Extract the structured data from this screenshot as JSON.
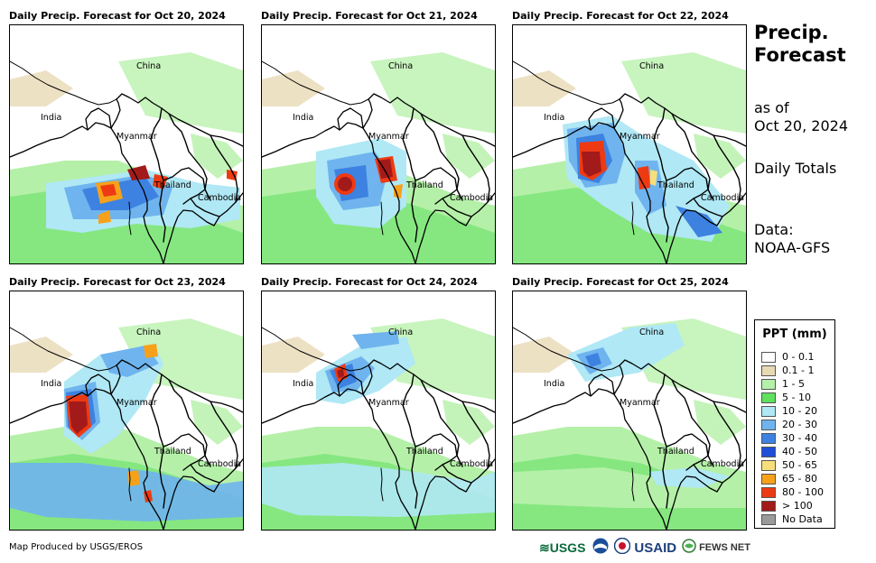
{
  "panels": [
    {
      "title": "Daily Precip. Forecast for Oct 20, 2024"
    },
    {
      "title": "Daily Precip. Forecast for Oct 21, 2024"
    },
    {
      "title": "Daily Precip. Forecast for Oct 22, 2024"
    },
    {
      "title": "Daily Precip. Forecast for Oct 23, 2024"
    },
    {
      "title": "Daily Precip. Forecast for Oct 24, 2024"
    },
    {
      "title": "Daily Precip. Forecast for Oct 25, 2024"
    }
  ],
  "map_labels": {
    "china": "China",
    "india": "India",
    "myanmar": "Myanmar",
    "thailand": "Thailand",
    "cambodia": "Cambodia"
  },
  "side": {
    "title_line1": "Precip.",
    "title_line2": "Forecast",
    "asof_line1": "as of",
    "asof_line2": "Oct 20, 2024",
    "totals": "Daily Totals",
    "data_line1": "Data:",
    "data_line2": "NOAA-GFS"
  },
  "legend": {
    "title": "PPT (mm)",
    "items": [
      {
        "label": "0 - 0.1",
        "color": "#ffffff"
      },
      {
        "label": "0.1 - 1",
        "color": "#e8d9b5"
      },
      {
        "label": "1 - 5",
        "color": "#b5f0a8"
      },
      {
        "label": "5 - 10",
        "color": "#5fe05f"
      },
      {
        "label": "10 - 20",
        "color": "#b0e8f5"
      },
      {
        "label": "20 - 30",
        "color": "#6fb4ee"
      },
      {
        "label": "30 - 40",
        "color": "#3d82e0"
      },
      {
        "label": "40 - 50",
        "color": "#1f4fd6"
      },
      {
        "label": "50 - 65",
        "color": "#f7de7a"
      },
      {
        "label": "65 - 80",
        "color": "#f7a11a"
      },
      {
        "label": "80 - 100",
        "color": "#ee3a12"
      },
      {
        "label": "> 100",
        "color": "#a31a1a"
      },
      {
        "label": "No Data",
        "color": "#9a9a9a"
      }
    ]
  },
  "footer": {
    "credit": "Map Produced by USGS/EROS",
    "logo_usgs": "≋USGS",
    "logo_usaid": "USAID",
    "logo_fews": "FEWS NET"
  }
}
